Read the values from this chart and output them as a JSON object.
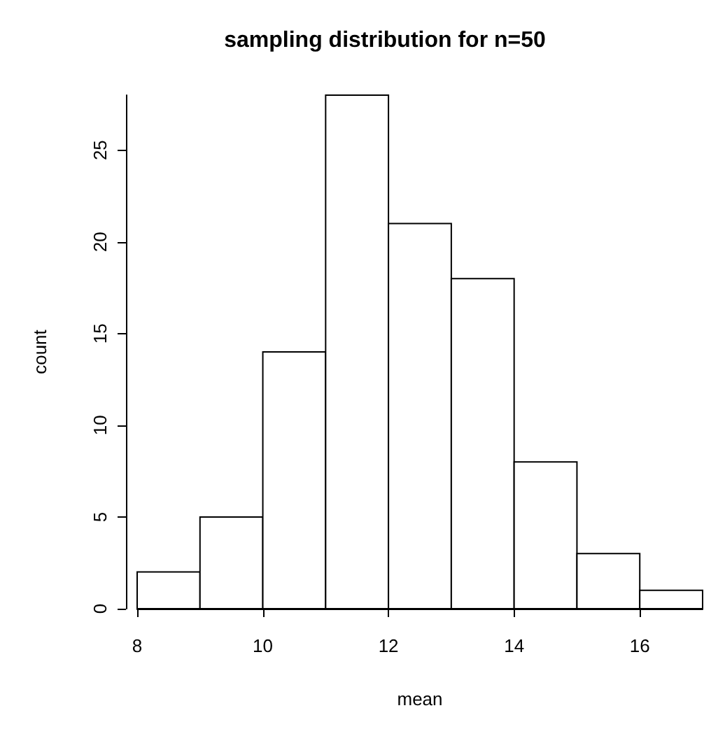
{
  "chart_data": {
    "type": "histogram",
    "title": "sampling distribution for n=50",
    "xlabel": "mean",
    "ylabel": "count",
    "bins": [
      8,
      9,
      10,
      11,
      12,
      13,
      14,
      15,
      16,
      17
    ],
    "values": [
      2,
      5,
      14,
      28,
      21,
      18,
      8,
      3,
      1
    ],
    "color": "#ffffff",
    "xlim": [
      8,
      17
    ],
    "xticks": [
      8,
      10,
      12,
      14,
      16
    ],
    "ylim": [
      0,
      28
    ],
    "yticks": [
      0,
      5,
      10,
      15,
      20,
      25
    ],
    "grid": false
  }
}
